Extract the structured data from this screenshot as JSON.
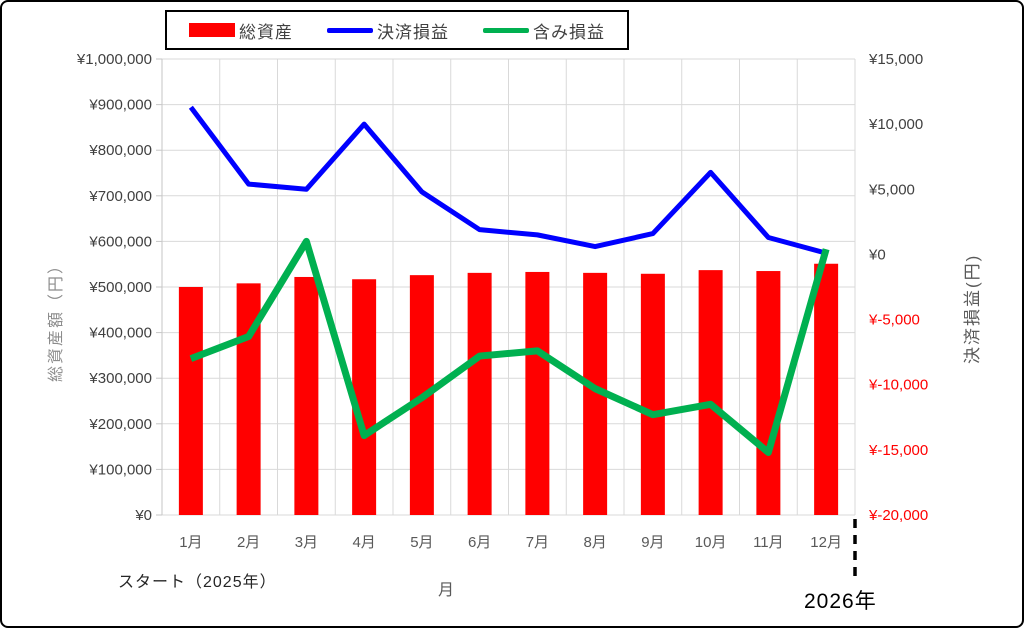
{
  "legend": {
    "items": [
      {
        "label": "総資産",
        "swatch": "bar",
        "color": "#FF0000"
      },
      {
        "label": "決済損益",
        "swatch": "line",
        "color": "#0000FF"
      },
      {
        "label": "含み損益",
        "swatch": "line",
        "color": "#00B050"
      }
    ]
  },
  "chart_data": {
    "type": "combo",
    "categories": [
      "1月",
      "2月",
      "3月",
      "4月",
      "5月",
      "6月",
      "7月",
      "8月",
      "9月",
      "10月",
      "11月",
      "12月"
    ],
    "series": [
      {
        "name": "総資産",
        "type": "bar",
        "axis": "left",
        "color": "#FF0000",
        "values": [
          500000,
          508000,
          522000,
          517000,
          526000,
          531000,
          533000,
          531000,
          529000,
          537000,
          535000,
          551000
        ]
      },
      {
        "name": "決済損益",
        "type": "line",
        "axis": "right",
        "color": "#0000FF",
        "values": [
          11300,
          5400,
          5000,
          10000,
          4800,
          1900,
          1500,
          600,
          1600,
          6300,
          1300,
          100
        ]
      },
      {
        "name": "含み損益",
        "type": "line",
        "axis": "right",
        "color": "#00B050",
        "values": [
          -8000,
          -6300,
          1000,
          -13900,
          -11000,
          -7800,
          -7400,
          -10300,
          -12300,
          -11500,
          -15200,
          400
        ]
      }
    ],
    "left_axis": {
      "title": "総資産額（円）",
      "min": 0,
      "max": 1000000,
      "step": 100000,
      "tick_labels": [
        "¥1,000,000",
        "¥900,000",
        "¥800,000",
        "¥700,000",
        "¥600,000",
        "¥500,000",
        "¥400,000",
        "¥300,000",
        "¥200,000",
        "¥100,000",
        "¥0"
      ]
    },
    "right_axis": {
      "title": "決済損益(円)",
      "min": -20000,
      "max": 15000,
      "step": 5000,
      "tick_labels": [
        "¥15,000",
        "¥10,000",
        "¥5,000",
        "¥0",
        "¥-5,000",
        "¥-10,000",
        "¥-15,000",
        "¥-20,000"
      ],
      "negative_color": "#FF0000"
    },
    "x_axis": {
      "title": "月"
    },
    "annotations": {
      "start": "スタート（2025年）",
      "next_year": "2026年",
      "year_divider": true
    },
    "grid": true,
    "legend_position": "top",
    "colors": {
      "grid": "#D9D9D9",
      "axis_line": "#C6C6C6",
      "tick_label": "#404040",
      "month_label": "#595959"
    }
  }
}
